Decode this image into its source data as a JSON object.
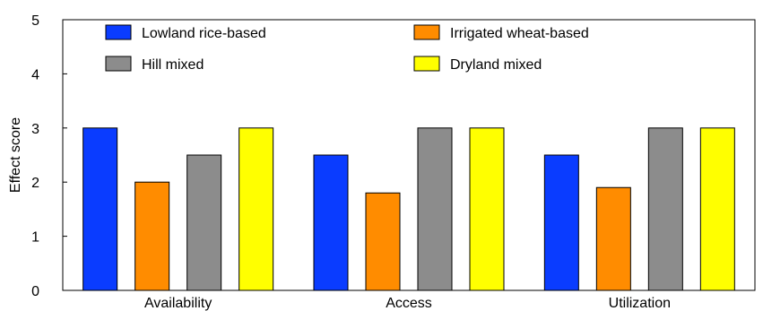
{
  "chart_data": {
    "type": "bar",
    "categories": [
      "Availability",
      "Access",
      "Utilization"
    ],
    "series": [
      {
        "name": "Lowland rice-based",
        "color": "#0a3cff",
        "values": [
          3,
          2.5,
          2.5
        ]
      },
      {
        "name": "Irrigated wheat-based",
        "color": "#ff8c00",
        "values": [
          2,
          1.8,
          1.9
        ]
      },
      {
        "name": "Hill mixed",
        "color": "#8c8c8c",
        "values": [
          2.5,
          3,
          3
        ]
      },
      {
        "name": "Dryland mixed",
        "color": "#ffff00",
        "values": [
          3,
          3,
          3
        ]
      }
    ],
    "ylabel": "Effect score",
    "xlabel": "",
    "ylim": [
      0,
      5
    ],
    "yticks": [
      "0",
      "1",
      "2",
      "3",
      "4",
      "5"
    ],
    "grid": false,
    "legend": "top, two columns"
  }
}
